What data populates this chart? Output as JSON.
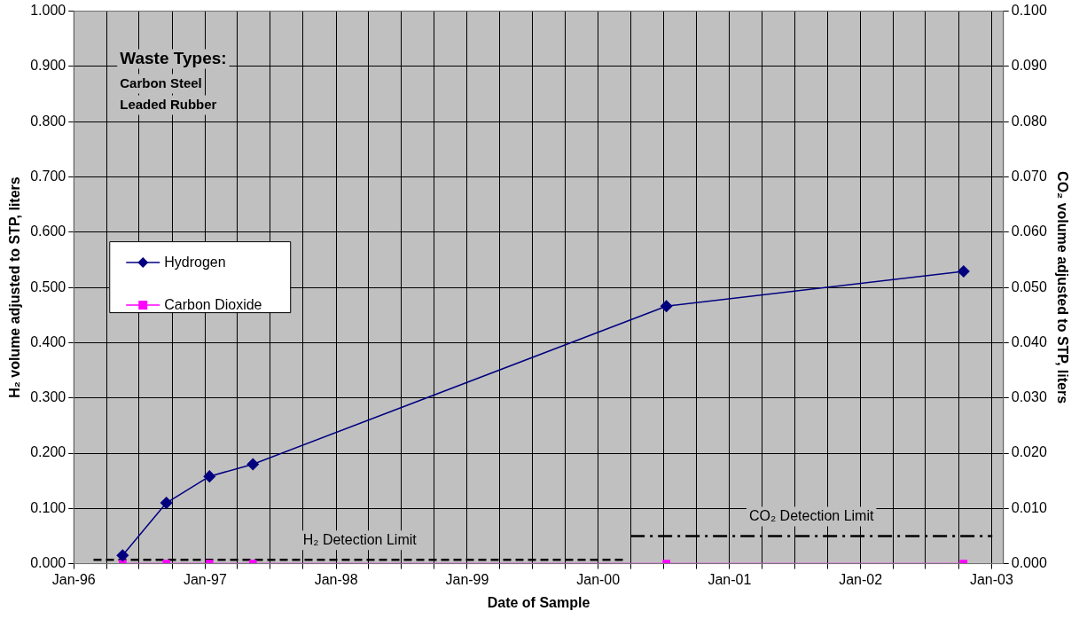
{
  "chart_data": {
    "type": "line",
    "xlabel": "Date of Sample",
    "ylabel": "H₂ volume adjusted to STP, liters",
    "y2label": "CO₂ volume adjusted to STP, liters",
    "xlim": [
      "1996-01-01",
      "2003-02-03"
    ],
    "xticks": [
      {
        "value": "1996-01-01",
        "label": "Jan-96"
      },
      {
        "value": "1996-04-01",
        "label": null
      },
      {
        "value": "1996-07-01",
        "label": null
      },
      {
        "value": "1996-10-01",
        "label": null
      },
      {
        "value": "1997-01-01",
        "label": "Jan-97"
      },
      {
        "value": "1997-04-01",
        "label": null
      },
      {
        "value": "1997-07-01",
        "label": null
      },
      {
        "value": "1997-10-01",
        "label": null
      },
      {
        "value": "1998-01-01",
        "label": "Jan-98"
      },
      {
        "value": "1998-04-01",
        "label": null
      },
      {
        "value": "1998-07-01",
        "label": null
      },
      {
        "value": "1998-10-01",
        "label": null
      },
      {
        "value": "1999-01-01",
        "label": "Jan-99"
      },
      {
        "value": "1999-04-01",
        "label": null
      },
      {
        "value": "1999-07-01",
        "label": null
      },
      {
        "value": "1999-10-01",
        "label": null
      },
      {
        "value": "2000-01-01",
        "label": "Jan-00"
      },
      {
        "value": "2000-04-01",
        "label": null
      },
      {
        "value": "2000-07-01",
        "label": null
      },
      {
        "value": "2000-10-01",
        "label": null
      },
      {
        "value": "2001-01-01",
        "label": "Jan-01"
      },
      {
        "value": "2001-04-01",
        "label": null
      },
      {
        "value": "2001-07-01",
        "label": null
      },
      {
        "value": "2001-10-01",
        "label": null
      },
      {
        "value": "2002-01-01",
        "label": "Jan-02"
      },
      {
        "value": "2002-04-01",
        "label": null
      },
      {
        "value": "2002-07-01",
        "label": null
      },
      {
        "value": "2002-10-01",
        "label": null
      },
      {
        "value": "2003-01-01",
        "label": "Jan-03"
      }
    ],
    "ylim": [
      0,
      1
    ],
    "yticks": [
      {
        "value": 0,
        "label": "0.000"
      },
      {
        "value": 0.1,
        "label": "0.100"
      },
      {
        "value": 0.2,
        "label": "0.200"
      },
      {
        "value": 0.3,
        "label": "0.300"
      },
      {
        "value": 0.4,
        "label": "0.400"
      },
      {
        "value": 0.5,
        "label": "0.500"
      },
      {
        "value": 0.6,
        "label": "0.600"
      },
      {
        "value": 0.7,
        "label": "0.700"
      },
      {
        "value": 0.8,
        "label": "0.800"
      },
      {
        "value": 0.9,
        "label": "0.900"
      },
      {
        "value": 1,
        "label": "1.000"
      }
    ],
    "y2lim": [
      0,
      0.1
    ],
    "y2ticks": [
      {
        "value": 0,
        "label": "0.000"
      },
      {
        "value": 0.01,
        "label": "0.010"
      },
      {
        "value": 0.02,
        "label": "0.020"
      },
      {
        "value": 0.03,
        "label": "0.030"
      },
      {
        "value": 0.04,
        "label": "0.040"
      },
      {
        "value": 0.05,
        "label": "0.050"
      },
      {
        "value": 0.06,
        "label": "0.060"
      },
      {
        "value": 0.07,
        "label": "0.070"
      },
      {
        "value": 0.08,
        "label": "0.080"
      },
      {
        "value": 0.09,
        "label": "0.090"
      },
      {
        "value": 0.1,
        "label": "0.100"
      }
    ],
    "series": [
      {
        "name": "Hydrogen",
        "color": "#000080",
        "marker": "diamond",
        "x": [
          "1996-05-16",
          "1996-09-15",
          "1997-01-13",
          "1997-05-14",
          "2000-07-09",
          "2002-10-15"
        ],
        "values": [
          0.015,
          0.11,
          0.158,
          0.18,
          0.466,
          0.529
        ]
      },
      {
        "name": "Carbon Dioxide",
        "color": "#ff00ff",
        "marker": "square",
        "axis": "y2",
        "x": [
          "1996-05-16",
          "1996-09-15",
          "1997-01-13",
          "1997-05-14",
          "2000-07-09",
          "2002-10-15"
        ],
        "values": [
          0,
          0,
          0,
          0,
          0,
          0
        ]
      },
      {
        "name": "H₂ Detection Limit",
        "color": "#000000",
        "marker": "none",
        "line_style": "dashed",
        "x": [
          "1996-02-25",
          "2000-03-18"
        ],
        "values": [
          0.007,
          0.007
        ]
      },
      {
        "name": "CO₂ Detection Limit",
        "color": "#000000",
        "marker": "none",
        "line_style": "dashdot",
        "axis": "y2",
        "x": [
          "2000-03-31",
          "2003-01-03"
        ],
        "values": [
          0.005,
          0.005
        ]
      }
    ],
    "annotations": [
      "Waste Types:",
      "Carbon Steel",
      "Leaded Rubber"
    ],
    "grid": true,
    "legend": "center left"
  }
}
